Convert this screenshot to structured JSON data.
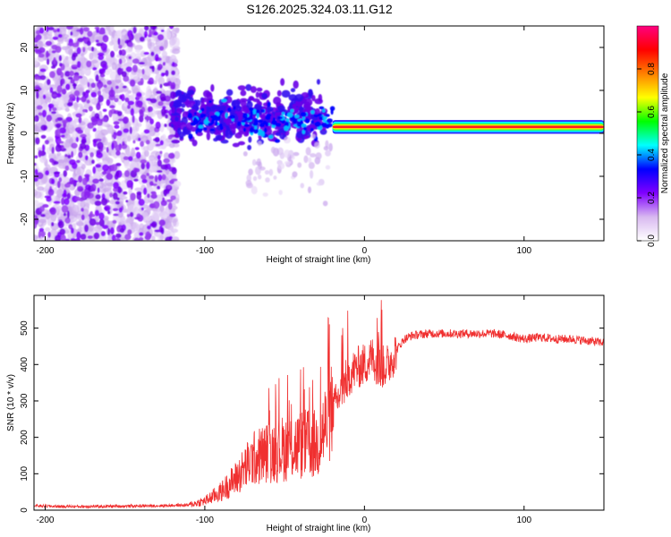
{
  "title": "S126.2025.324.03.11.G12",
  "colors": {
    "axis": "#000000",
    "line": "#f03030",
    "background": "#ffffff"
  },
  "chart_data": [
    {
      "type": "heatmap",
      "title": "S126.2025.324.03.11.G12",
      "xlabel": "Height of straight line (km)",
      "ylabel": "Frequency (Hz)",
      "xlim": [
        -207,
        150
      ],
      "ylim": [
        -25,
        25
      ],
      "xticks": [
        {
          "value": -200,
          "label": "-200"
        },
        {
          "value": -100,
          "label": "-100"
        },
        {
          "value": 0,
          "label": "0"
        },
        {
          "value": 100,
          "label": "100"
        }
      ],
      "yticks": [
        {
          "value": 20,
          "label": "20"
        },
        {
          "value": 10,
          "label": "10"
        },
        {
          "value": 0,
          "label": "0"
        },
        {
          "value": -10,
          "label": "-10"
        },
        {
          "value": -20,
          "label": "-20"
        }
      ],
      "carrier": {
        "frequency_hz": 1.5,
        "start_km": -20,
        "end_km": 150,
        "description": "strong narrow tone near +1.5 Hz from about -20 km to 150 km"
      },
      "colorbar": {
        "label": "Normalized spectral amplitude",
        "range": [
          0,
          1
        ],
        "ticks": [
          {
            "value": 0.0,
            "label": "0.0"
          },
          {
            "value": 0.2,
            "label": "0.2"
          },
          {
            "value": 0.4,
            "label": "0.4"
          },
          {
            "value": 0.6,
            "label": "0.6"
          },
          {
            "value": 0.8,
            "label": "0.8"
          }
        ],
        "stops": [
          "#ffffff",
          "#d8b8f0",
          "#8000ff",
          "#0000ff",
          "#00ffff",
          "#00ff00",
          "#ffff00",
          "#ff8000",
          "#ff0000",
          "#ff0080"
        ]
      }
    },
    {
      "type": "line",
      "xlabel": "Height of straight line (km)",
      "ylabel": "SNR (10 * v/v)",
      "xlim": [
        -207,
        150
      ],
      "ylim": [
        0,
        590
      ],
      "xticks": [
        {
          "value": -200,
          "label": "-200"
        },
        {
          "value": -100,
          "label": "-100"
        },
        {
          "value": 0,
          "label": "0"
        },
        {
          "value": 100,
          "label": "100"
        }
      ],
      "yticks": [
        {
          "value": 0,
          "label": "0"
        },
        {
          "value": 100,
          "label": "100"
        },
        {
          "value": 200,
          "label": "200"
        },
        {
          "value": 300,
          "label": "300"
        },
        {
          "value": 400,
          "label": "400"
        },
        {
          "value": 500,
          "label": "500"
        }
      ],
      "series": [
        {
          "name": "SNR",
          "x": [
            -207,
            -190,
            -170,
            -150,
            -130,
            -110,
            -100,
            -90,
            -80,
            -70,
            -60,
            -50,
            -40,
            -30,
            -20,
            -15,
            -10,
            -5,
            0,
            5,
            10,
            15,
            20,
            25,
            30,
            40,
            50,
            60,
            70,
            80,
            90,
            100,
            110,
            120,
            130,
            140,
            150
          ],
          "values": [
            12,
            10,
            10,
            11,
            12,
            14,
            25,
            50,
            90,
            140,
            160,
            170,
            180,
            180,
            270,
            320,
            370,
            390,
            400,
            420,
            390,
            400,
            440,
            470,
            480,
            485,
            485,
            485,
            485,
            485,
            480,
            470,
            475,
            470,
            470,
            465,
            460
          ]
        }
      ]
    }
  ]
}
